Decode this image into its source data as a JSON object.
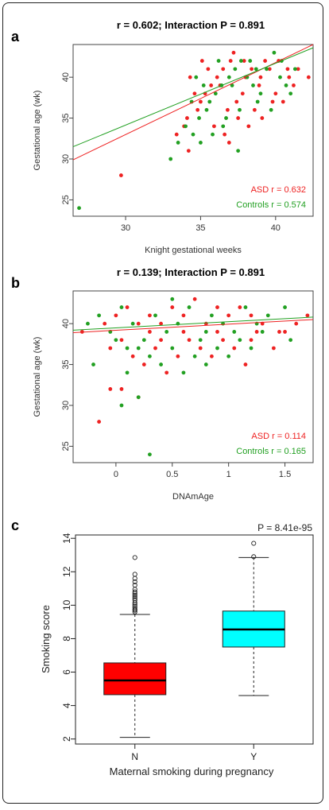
{
  "panels": [
    {
      "id": "a",
      "letter": "a"
    },
    {
      "id": "b",
      "letter": "b"
    },
    {
      "id": "c",
      "letter": "c"
    }
  ],
  "chart_data": [
    {
      "type": "scatter",
      "panel": "a",
      "title": "r = 0.602; Interaction P = 0.891",
      "xlabel": "Knight gestational weeks",
      "ylabel": "Gestational age (wk)",
      "xlim": [
        26.5,
        42.5
      ],
      "ylim": [
        23,
        44
      ],
      "xticks": [
        30,
        35,
        40
      ],
      "yticks": [
        25,
        30,
        35,
        40
      ],
      "legend_placement": "bottom-right",
      "colors": {
        "asd": "#ee2222",
        "controls": "#22a022"
      },
      "legend": [
        {
          "label": "ASD r = 0.632",
          "color": "#ee2222"
        },
        {
          "label": "Controls r = 0.574",
          "color": "#22a022"
        }
      ],
      "fit_lines": [
        {
          "series": "ASD",
          "x": [
            26.5,
            42.5
          ],
          "y": [
            29.9,
            44.0
          ]
        },
        {
          "series": "Controls",
          "x": [
            26.5,
            42.5
          ],
          "y": [
            31.5,
            43.6
          ]
        }
      ],
      "series": [
        {
          "name": "ASD",
          "color": "#ee2222",
          "points": [
            [
              29.7,
              28
            ],
            [
              34.2,
              31
            ],
            [
              33.4,
              33
            ],
            [
              33.9,
              34
            ],
            [
              34.1,
              35
            ],
            [
              34.8,
              36
            ],
            [
              35.0,
              37
            ],
            [
              35.3,
              38
            ],
            [
              35.7,
              39
            ],
            [
              36.1,
              40
            ],
            [
              36.5,
              41
            ],
            [
              37.0,
              42
            ],
            [
              37.2,
              43
            ],
            [
              37.9,
              42
            ],
            [
              38.4,
              41
            ],
            [
              39.0,
              40
            ],
            [
              39.6,
              41
            ],
            [
              40.2,
              42
            ],
            [
              40.8,
              41
            ],
            [
              41.2,
              39
            ],
            [
              42.2,
              40
            ],
            [
              39.8,
              37
            ],
            [
              38.6,
              36
            ],
            [
              37.5,
              35
            ],
            [
              36.8,
              36
            ],
            [
              35.9,
              34
            ],
            [
              36.6,
              33
            ],
            [
              37.8,
              38
            ],
            [
              38.9,
              39
            ],
            [
              40.0,
              38
            ],
            [
              40.5,
              37
            ],
            [
              39.3,
              42
            ],
            [
              38.0,
              40
            ],
            [
              36.3,
              39
            ],
            [
              35.5,
              41
            ],
            [
              34.6,
              38
            ],
            [
              34.3,
              40
            ],
            [
              35.1,
              42
            ],
            [
              37.4,
              37
            ],
            [
              40.9,
              40
            ],
            [
              41.5,
              41
            ],
            [
              39.1,
              35
            ],
            [
              38.2,
              34
            ],
            [
              36.9,
              32
            ]
          ]
        },
        {
          "name": "Controls",
          "color": "#22a022",
          "points": [
            [
              26.9,
              24
            ],
            [
              33.0,
              30
            ],
            [
              37.5,
              31
            ],
            [
              33.5,
              32
            ],
            [
              34.0,
              34
            ],
            [
              34.5,
              33
            ],
            [
              34.9,
              35
            ],
            [
              35.4,
              36
            ],
            [
              35.6,
              37
            ],
            [
              36.0,
              38
            ],
            [
              36.4,
              39
            ],
            [
              36.9,
              40
            ],
            [
              37.3,
              41
            ],
            [
              37.7,
              42
            ],
            [
              38.1,
              40
            ],
            [
              38.5,
              39
            ],
            [
              39.0,
              38
            ],
            [
              39.4,
              41
            ],
            [
              39.9,
              43
            ],
            [
              40.3,
              40
            ],
            [
              40.7,
              39
            ],
            [
              41.0,
              38
            ],
            [
              41.3,
              41
            ],
            [
              38.8,
              37
            ],
            [
              37.6,
              36
            ],
            [
              36.7,
              35
            ],
            [
              35.8,
              33
            ],
            [
              35.2,
              39
            ],
            [
              34.7,
              40
            ],
            [
              34.4,
              37
            ],
            [
              36.2,
              42
            ],
            [
              38.3,
              42
            ],
            [
              39.7,
              36
            ],
            [
              40.4,
              42
            ],
            [
              37.1,
              39
            ],
            [
              38.7,
              41
            ],
            [
              36.5,
              34
            ],
            [
              35.0,
              32
            ]
          ]
        }
      ]
    },
    {
      "type": "scatter",
      "panel": "b",
      "title": "r = 0.139; Interaction P = 0.891",
      "xlabel": "DNAmAge",
      "ylabel": "Gestational age (wk)",
      "xlim": [
        -0.38,
        1.75
      ],
      "ylim": [
        23,
        44
      ],
      "xticks": [
        0.0,
        0.5,
        1.0,
        1.5
      ],
      "yticks": [
        25,
        30,
        35,
        40
      ],
      "legend_placement": "bottom-right",
      "colors": {
        "asd": "#ee2222",
        "controls": "#22a022"
      },
      "legend": [
        {
          "label": "ASD r = 0.114",
          "color": "#ee2222"
        },
        {
          "label": "Controls r = 0.165",
          "color": "#22a022"
        }
      ],
      "fit_lines": [
        {
          "series": "ASD",
          "x": [
            -0.38,
            1.75
          ],
          "y": [
            38.9,
            40.5
          ]
        },
        {
          "series": "Controls",
          "x": [
            -0.38,
            1.75
          ],
          "y": [
            39.2,
            40.8
          ]
        }
      ],
      "series": [
        {
          "name": "ASD",
          "color": "#ee2222",
          "points": [
            [
              -0.15,
              28
            ],
            [
              -0.05,
              32
            ],
            [
              0.05,
              32
            ],
            [
              0.2,
              31
            ],
            [
              -0.3,
              39
            ],
            [
              -0.1,
              40
            ],
            [
              0.0,
              41
            ],
            [
              0.1,
              42
            ],
            [
              0.2,
              40
            ],
            [
              0.3,
              39
            ],
            [
              0.4,
              38
            ],
            [
              0.5,
              42
            ],
            [
              0.6,
              41
            ],
            [
              0.7,
              43
            ],
            [
              0.8,
              40
            ],
            [
              0.9,
              39
            ],
            [
              1.0,
              41
            ],
            [
              1.1,
              42
            ],
            [
              1.2,
              38
            ],
            [
              1.3,
              40
            ],
            [
              1.4,
              37
            ],
            [
              1.45,
              39
            ],
            [
              1.6,
              40
            ],
            [
              1.7,
              41
            ],
            [
              0.15,
              36
            ],
            [
              0.25,
              35
            ],
            [
              0.35,
              37
            ],
            [
              0.45,
              34
            ],
            [
              0.55,
              36
            ],
            [
              0.65,
              38
            ],
            [
              0.75,
              37
            ],
            [
              0.85,
              36
            ],
            [
              0.95,
              38
            ],
            [
              1.05,
              37
            ],
            [
              1.15,
              35
            ],
            [
              1.25,
              39
            ],
            [
              0.05,
              38
            ],
            [
              -0.05,
              37
            ],
            [
              0.3,
              41
            ],
            [
              0.6,
              39
            ],
            [
              0.9,
              42
            ],
            [
              1.2,
              41
            ],
            [
              1.5,
              39
            ],
            [
              0.4,
              40
            ]
          ]
        },
        {
          "name": "Controls",
          "color": "#22a022",
          "points": [
            [
              0.3,
              24
            ],
            [
              0.05,
              30
            ],
            [
              -0.2,
              35
            ],
            [
              0.2,
              31
            ],
            [
              0.1,
              34
            ],
            [
              -0.25,
              40
            ],
            [
              -0.15,
              41
            ],
            [
              -0.05,
              39
            ],
            [
              0.05,
              42
            ],
            [
              0.15,
              40
            ],
            [
              0.25,
              38
            ],
            [
              0.35,
              41
            ],
            [
              0.45,
              39
            ],
            [
              0.55,
              40
            ],
            [
              0.65,
              42
            ],
            [
              0.75,
              38
            ],
            [
              0.85,
              41
            ],
            [
              0.95,
              40
            ],
            [
              1.05,
              39
            ],
            [
              1.15,
              42
            ],
            [
              1.25,
              40
            ],
            [
              1.35,
              41
            ],
            [
              1.55,
              38
            ],
            [
              1.5,
              42
            ],
            [
              0.2,
              37
            ],
            [
              0.3,
              36
            ],
            [
              0.4,
              35
            ],
            [
              0.5,
              37
            ],
            [
              0.6,
              34
            ],
            [
              0.7,
              36
            ],
            [
              0.8,
              35
            ],
            [
              0.9,
              37
            ],
            [
              1.0,
              36
            ],
            [
              1.1,
              38
            ],
            [
              1.2,
              37
            ],
            [
              1.3,
              39
            ],
            [
              0.0,
              38
            ],
            [
              0.1,
              37
            ],
            [
              0.5,
              43
            ],
            [
              0.8,
              39
            ]
          ]
        }
      ]
    },
    {
      "type": "box",
      "panel": "c",
      "xlabel": "Maternal smoking during pregnancy",
      "ylabel": "Smoking score",
      "annotation": "P = 8.41e-95",
      "categories": [
        "N",
        "Y"
      ],
      "ylim": [
        1.7,
        14.2
      ],
      "yticks": [
        2,
        4,
        6,
        8,
        10,
        12,
        14
      ],
      "boxes": [
        {
          "category": "N",
          "color": "#ff0000",
          "whisker_low": 2.1,
          "q1": 4.65,
          "median": 5.5,
          "q3": 6.55,
          "whisker_high": 9.45,
          "outliers": [
            9.6,
            9.7,
            9.75,
            9.85,
            9.95,
            10.05,
            10.15,
            10.3,
            10.4,
            10.5,
            10.6,
            10.7,
            10.8,
            10.95,
            11.2,
            11.4,
            11.6,
            11.85,
            12.85
          ]
        },
        {
          "category": "Y",
          "color": "#00ffff",
          "whisker_low": 4.6,
          "q1": 7.5,
          "median": 8.55,
          "q3": 9.65,
          "whisker_high": 12.85,
          "outliers": [
            12.9,
            13.7
          ]
        }
      ]
    }
  ]
}
